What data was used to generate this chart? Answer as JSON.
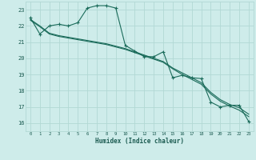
{
  "xlabel": "Humidex (Indice chaleur)",
  "ylabel": "",
  "xlim": [
    -0.5,
    23.5
  ],
  "ylim": [
    15.5,
    23.5
  ],
  "yticks": [
    16,
    17,
    18,
    19,
    20,
    21,
    22,
    23
  ],
  "xticks": [
    0,
    1,
    2,
    3,
    4,
    5,
    6,
    7,
    8,
    9,
    10,
    11,
    12,
    13,
    14,
    15,
    16,
    17,
    18,
    19,
    20,
    21,
    22,
    23
  ],
  "bg_color": "#ceecea",
  "grid_color": "#b2d8d4",
  "line_color": "#1a6b5a",
  "line1_y": [
    22.5,
    21.5,
    22.0,
    22.1,
    22.0,
    22.2,
    23.1,
    23.25,
    23.25,
    23.1,
    20.8,
    20.45,
    20.1,
    20.1,
    20.4,
    18.8,
    18.95,
    18.8,
    18.75,
    17.3,
    17.0,
    17.1,
    17.1,
    16.1
  ],
  "line2_y": [
    22.4,
    22.0,
    21.55,
    21.4,
    21.3,
    21.2,
    21.1,
    21.0,
    20.9,
    20.75,
    20.6,
    20.4,
    20.2,
    20.0,
    19.8,
    19.4,
    19.1,
    18.8,
    18.5,
    17.9,
    17.45,
    17.15,
    16.95,
    16.55
  ],
  "line3_y": [
    22.35,
    21.95,
    21.5,
    21.35,
    21.25,
    21.15,
    21.05,
    20.95,
    20.85,
    20.7,
    20.55,
    20.35,
    20.15,
    19.95,
    19.75,
    19.35,
    19.0,
    18.7,
    18.4,
    17.8,
    17.35,
    17.05,
    16.8,
    16.4
  ]
}
